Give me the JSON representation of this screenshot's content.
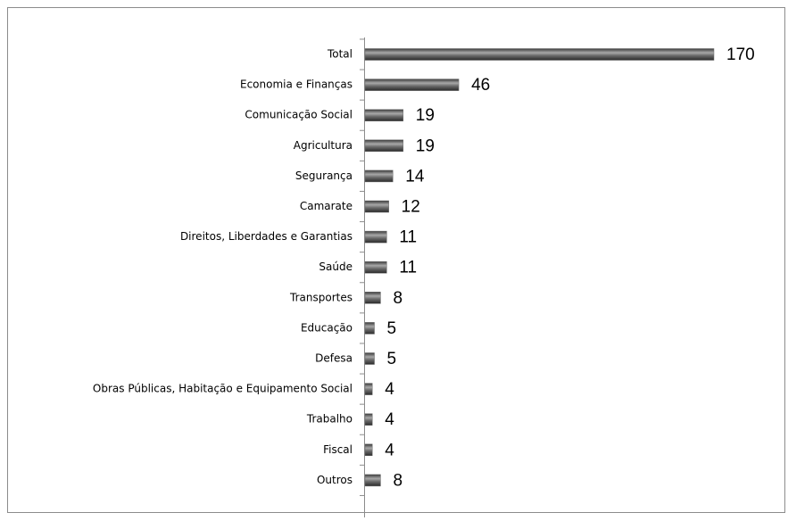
{
  "chart_data": {
    "type": "bar",
    "orientation": "horizontal",
    "categories": [
      "Total",
      "Economia e Finanças",
      "Comunicação Social",
      "Agricultura",
      "Segurança",
      "Camarate",
      "Direitos, Liberdades e Garantias",
      "Saúde",
      "Transportes",
      "Educação",
      "Defesa",
      "Obras Públicas, Habitação e Equipamento Social",
      "Trabalho",
      "Fiscal",
      "Outros"
    ],
    "values": [
      170,
      46,
      19,
      19,
      14,
      12,
      11,
      11,
      8,
      5,
      5,
      4,
      4,
      4,
      8
    ],
    "color": "#6b6b6b"
  }
}
